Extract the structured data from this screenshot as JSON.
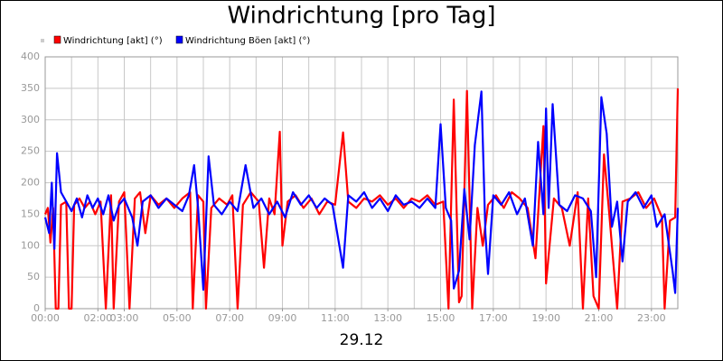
{
  "chart_data": {
    "type": "line",
    "title": "Windrichtung [pro Tag]",
    "xlabel": "29.12",
    "xlim": [
      0,
      24
    ],
    "ylim": [
      0,
      400
    ],
    "yticks": [
      0,
      50,
      100,
      150,
      200,
      250,
      300,
      350,
      400
    ],
    "xticks": [
      {
        "value": 0,
        "label": "00:00"
      },
      {
        "value": 2,
        "label": "02:00"
      },
      {
        "value": 3,
        "label": "03:00"
      },
      {
        "value": 5,
        "label": "05:00"
      },
      {
        "value": 7,
        "label": "07:00"
      },
      {
        "value": 9,
        "label": "09:00"
      },
      {
        "value": 11,
        "label": "11:00"
      },
      {
        "value": 13,
        "label": "13:00"
      },
      {
        "value": 15,
        "label": "15:00"
      },
      {
        "value": 17,
        "label": "17:00"
      },
      {
        "value": 19,
        "label": "19:00"
      },
      {
        "value": 21,
        "label": "21:00"
      },
      {
        "value": 23,
        "label": "23:00"
      }
    ],
    "xgrid_step": 1,
    "grid": true,
    "legend": "top-left",
    "series": [
      {
        "name": "Windrichtung [akt] (°)",
        "color": "#ff0000",
        "x": [
          0.0,
          0.1,
          0.2,
          0.3,
          0.4,
          0.5,
          0.6,
          0.8,
          0.9,
          1.0,
          1.1,
          1.3,
          1.5,
          1.7,
          1.9,
          2.1,
          2.3,
          2.5,
          2.6,
          2.8,
          3.0,
          3.2,
          3.4,
          3.6,
          3.8,
          4.0,
          4.3,
          4.6,
          4.9,
          5.2,
          5.5,
          5.6,
          5.8,
          6.0,
          6.1,
          6.3,
          6.6,
          6.9,
          7.1,
          7.3,
          7.5,
          7.8,
          8.1,
          8.3,
          8.5,
          8.7,
          8.9,
          9.0,
          9.2,
          9.5,
          9.8,
          10.1,
          10.4,
          10.7,
          11.0,
          11.3,
          11.5,
          11.8,
          12.1,
          12.4,
          12.7,
          13.0,
          13.3,
          13.6,
          13.9,
          14.2,
          14.5,
          14.8,
          15.1,
          15.3,
          15.5,
          15.7,
          15.8,
          16.0,
          16.2,
          16.4,
          16.6,
          16.8,
          17.1,
          17.4,
          17.7,
          18.0,
          18.3,
          18.6,
          18.9,
          19.0,
          19.3,
          19.6,
          19.9,
          20.2,
          20.4,
          20.6,
          20.8,
          21.0,
          21.2,
          21.4,
          21.7,
          21.9,
          22.2,
          22.5,
          22.8,
          23.1,
          23.4,
          23.5,
          23.7,
          23.9,
          24.0
        ],
        "values": [
          150,
          160,
          105,
          160,
          0,
          0,
          165,
          170,
          0,
          0,
          165,
          175,
          160,
          170,
          150,
          170,
          0,
          180,
          0,
          170,
          185,
          0,
          175,
          185,
          120,
          180,
          165,
          175,
          160,
          175,
          185,
          0,
          180,
          170,
          0,
          160,
          175,
          165,
          180,
          0,
          165,
          185,
          170,
          65,
          175,
          150,
          281,
          100,
          170,
          180,
          160,
          175,
          150,
          170,
          165,
          280,
          170,
          160,
          175,
          170,
          180,
          165,
          175,
          160,
          175,
          170,
          180,
          165,
          170,
          0,
          332,
          10,
          20,
          346,
          0,
          160,
          100,
          165,
          180,
          160,
          185,
          175,
          160,
          80,
          290,
          40,
          175,
          160,
          100,
          185,
          0,
          175,
          20,
          0,
          245,
          150,
          0,
          170,
          175,
          185,
          160,
          175,
          145,
          0,
          140,
          145,
          350
        ]
      },
      {
        "name": "Windrichtung Böen [akt] (°)",
        "color": "#0000ff",
        "x": [
          0.0,
          0.15,
          0.25,
          0.35,
          0.45,
          0.6,
          0.8,
          1.0,
          1.2,
          1.4,
          1.6,
          1.8,
          2.0,
          2.2,
          2.4,
          2.6,
          2.8,
          3.0,
          3.3,
          3.5,
          3.7,
          4.0,
          4.3,
          4.6,
          4.9,
          5.2,
          5.45,
          5.65,
          5.8,
          6.0,
          6.2,
          6.4,
          6.7,
          7.0,
          7.3,
          7.6,
          7.9,
          8.2,
          8.5,
          8.8,
          9.1,
          9.4,
          9.7,
          10.0,
          10.3,
          10.6,
          10.9,
          11.3,
          11.5,
          11.8,
          12.1,
          12.4,
          12.7,
          13.0,
          13.3,
          13.6,
          13.9,
          14.2,
          14.5,
          14.8,
          15.0,
          15.2,
          15.4,
          15.5,
          15.7,
          15.9,
          16.1,
          16.3,
          16.55,
          16.7,
          16.8,
          17.0,
          17.3,
          17.6,
          17.9,
          18.2,
          18.5,
          18.7,
          18.9,
          19.0,
          19.1,
          19.25,
          19.5,
          19.8,
          20.1,
          20.4,
          20.7,
          20.9,
          21.1,
          21.3,
          21.5,
          21.7,
          21.9,
          22.1,
          22.4,
          22.7,
          23.0,
          23.2,
          23.5,
          23.8,
          23.9,
          24.0
        ],
        "values": [
          145,
          120,
          200,
          95,
          247,
          185,
          170,
          155,
          175,
          145,
          180,
          160,
          175,
          150,
          180,
          140,
          165,
          175,
          145,
          100,
          170,
          180,
          160,
          175,
          165,
          155,
          180,
          228,
          160,
          30,
          242,
          165,
          150,
          170,
          155,
          228,
          160,
          175,
          150,
          170,
          145,
          185,
          165,
          180,
          160,
          175,
          165,
          65,
          180,
          170,
          185,
          160,
          175,
          155,
          180,
          165,
          170,
          160,
          175,
          160,
          293,
          160,
          140,
          32,
          60,
          190,
          110,
          260,
          345,
          120,
          55,
          180,
          165,
          185,
          150,
          175,
          100,
          265,
          150,
          318,
          160,
          325,
          165,
          155,
          180,
          175,
          155,
          50,
          336,
          278,
          130,
          170,
          75,
          170,
          185,
          160,
          180,
          130,
          150,
          60,
          25,
          160
        ]
      }
    ]
  }
}
